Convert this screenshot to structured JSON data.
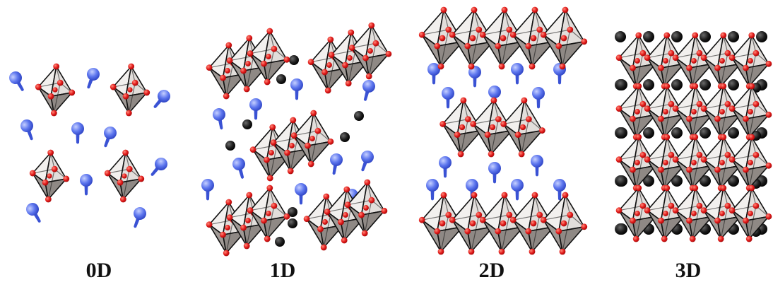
{
  "figure": {
    "panels": [
      {
        "label": "0D"
      },
      {
        "label": "1D"
      },
      {
        "label": "2D"
      },
      {
        "label": "3D"
      }
    ],
    "colors": {
      "oxygen_red": "#e01818",
      "cation_blue": "#4a64e6",
      "cation_black": "#1c1c1c",
      "octa_light": "#f2f0ee",
      "octa_dark": "#a09a96",
      "edge": "#111111"
    }
  }
}
